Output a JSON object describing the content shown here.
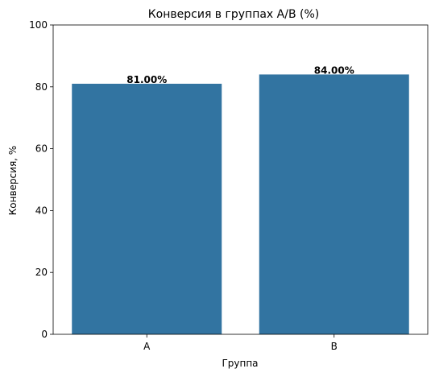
{
  "chart_data": {
    "type": "bar",
    "title": "Конверсия в группах A/B (%)",
    "xlabel": "Группа",
    "ylabel": "Конверсия, %",
    "categories": [
      "A",
      "B"
    ],
    "values": [
      81.0,
      84.0
    ],
    "data_labels": [
      "81.00%",
      "84.00%"
    ],
    "ylim": [
      0,
      100
    ],
    "yticks": [
      0,
      20,
      40,
      60,
      80,
      100
    ],
    "ytick_labels": [
      "0",
      "20",
      "40",
      "60",
      "80",
      "100"
    ],
    "grid": false,
    "bar_color": "#3274a1"
  }
}
